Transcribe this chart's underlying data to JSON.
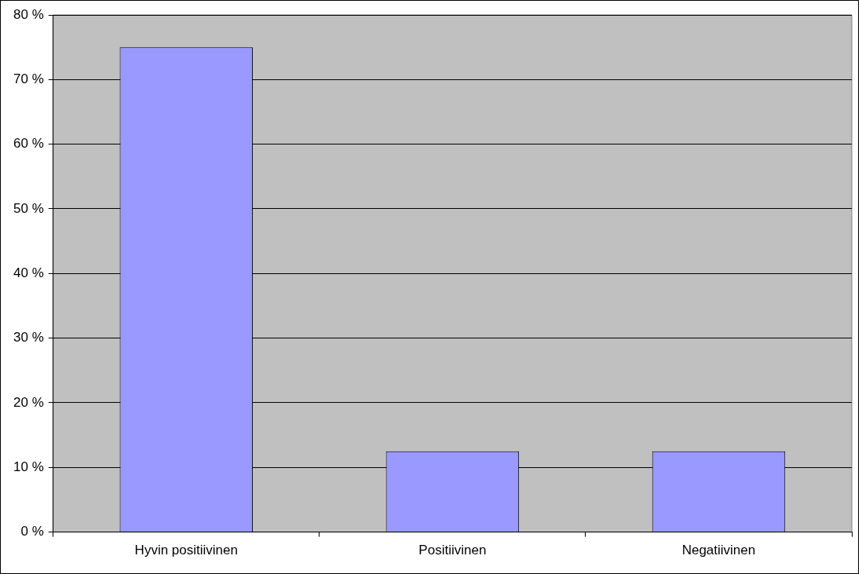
{
  "chart_data": {
    "type": "bar",
    "categories": [
      "Hyvin positiivinen",
      "Positiivinen",
      "Negatiivinen"
    ],
    "values": [
      75,
      12.5,
      12.5
    ],
    "color": "#9999ff",
    "ylim": [
      0,
      80
    ],
    "yticks": [
      {
        "value": 0,
        "label": "0 %"
      },
      {
        "value": 10,
        "label": "10 %"
      },
      {
        "value": 20,
        "label": "20 %"
      },
      {
        "value": 30,
        "label": "30 %"
      },
      {
        "value": 40,
        "label": "40 %"
      },
      {
        "value": 50,
        "label": "50 %"
      },
      {
        "value": 60,
        "label": "60 %"
      },
      {
        "value": 70,
        "label": "70 %"
      },
      {
        "value": 80,
        "label": "80 %"
      }
    ],
    "grid": "y",
    "legend": false
  }
}
